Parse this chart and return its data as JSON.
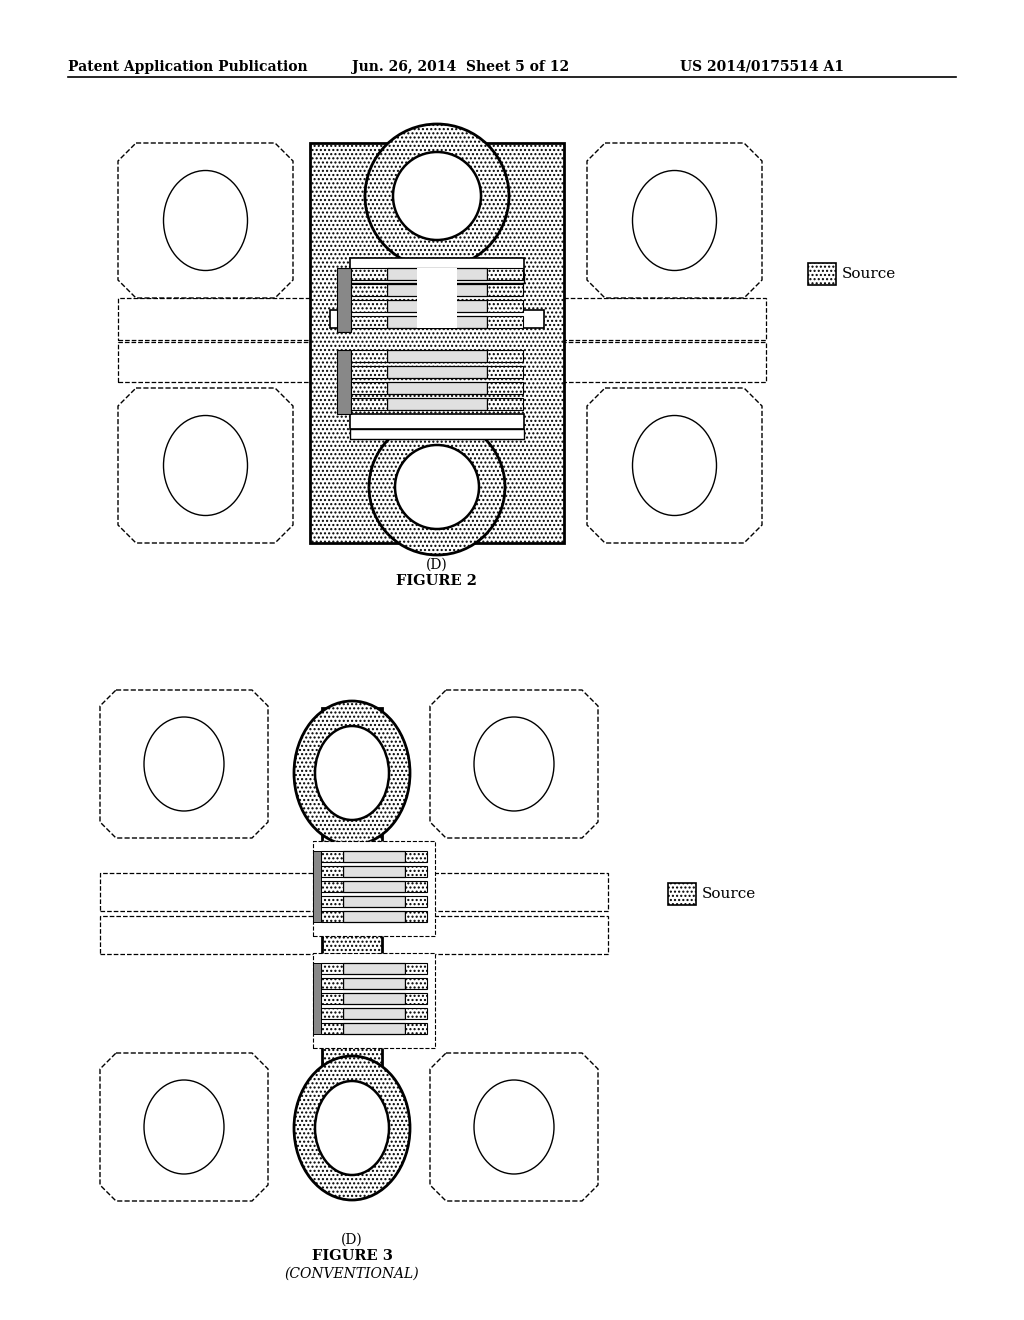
{
  "header_left": "Patent Application Publication",
  "header_mid": "Jun. 26, 2014  Sheet 5 of 12",
  "header_right": "US 2014/0175514 A1",
  "fig2_cap1": "(D)",
  "fig2_cap2": "FIGURE 2",
  "fig3_cap1": "(D)",
  "fig3_cap2": "FIGURE 3",
  "fig3_cap3": "(CONVENTIONAL)",
  "legend_label": "Source",
  "bg_color": "#ffffff"
}
